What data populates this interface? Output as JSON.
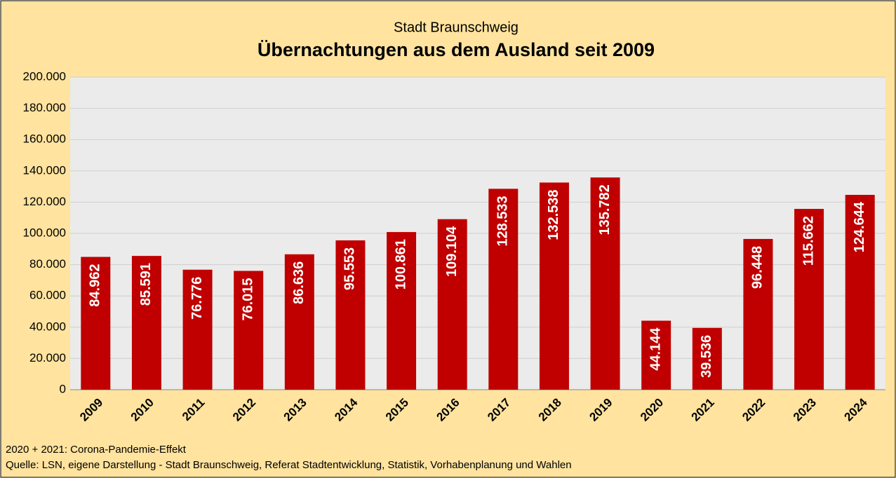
{
  "chart_data": {
    "type": "bar",
    "subtitle": "Stadt Braunschweig",
    "title": "Übernachtungen aus dem Ausland seit 2009",
    "categories": [
      "2009",
      "2010",
      "2011",
      "2012",
      "2013",
      "2014",
      "2015",
      "2016",
      "2017",
      "2018",
      "2019",
      "2020",
      "2021",
      "2022",
      "2023",
      "2024"
    ],
    "values": [
      84962,
      85591,
      76776,
      76015,
      86636,
      95553,
      100861,
      109104,
      128533,
      132538,
      135782,
      44144,
      39536,
      96448,
      115662,
      124644
    ],
    "value_labels": [
      "84.962",
      "85.591",
      "76.776",
      "76.015",
      "86.636",
      "95.553",
      "100.861",
      "109.104",
      "128.533",
      "132.538",
      "135.782",
      "44.144",
      "39.536",
      "96.448",
      "115.662",
      "124.644"
    ],
    "color": "#c00000",
    "ylim": [
      0,
      200000
    ],
    "yticks": [
      0,
      {
        "value": 20000,
        "label": "20.000"
      },
      {
        "value": 40000,
        "label": "40.000"
      },
      {
        "value": 60000,
        "label": "60.000"
      },
      {
        "value": 80000,
        "label": "80.000"
      },
      {
        "value": 100000,
        "label": "100.000"
      },
      {
        "value": 120000,
        "label": "120.000"
      },
      {
        "value": 140000,
        "label": "140.000"
      },
      {
        "value": 160000,
        "label": "160.000"
      },
      {
        "value": 180000,
        "label": "180.000"
      },
      {
        "value": 200000,
        "label": "200.000"
      }
    ],
    "grid": true,
    "notes": [
      "2020 + 2021: Corona-Pandemie-Effekt",
      "Quelle: LSN, eigene Darstellung - Stadt Braunschweig, Referat Stadtentwicklung, Statistik, Vorhabenplanung und Wahlen"
    ]
  }
}
